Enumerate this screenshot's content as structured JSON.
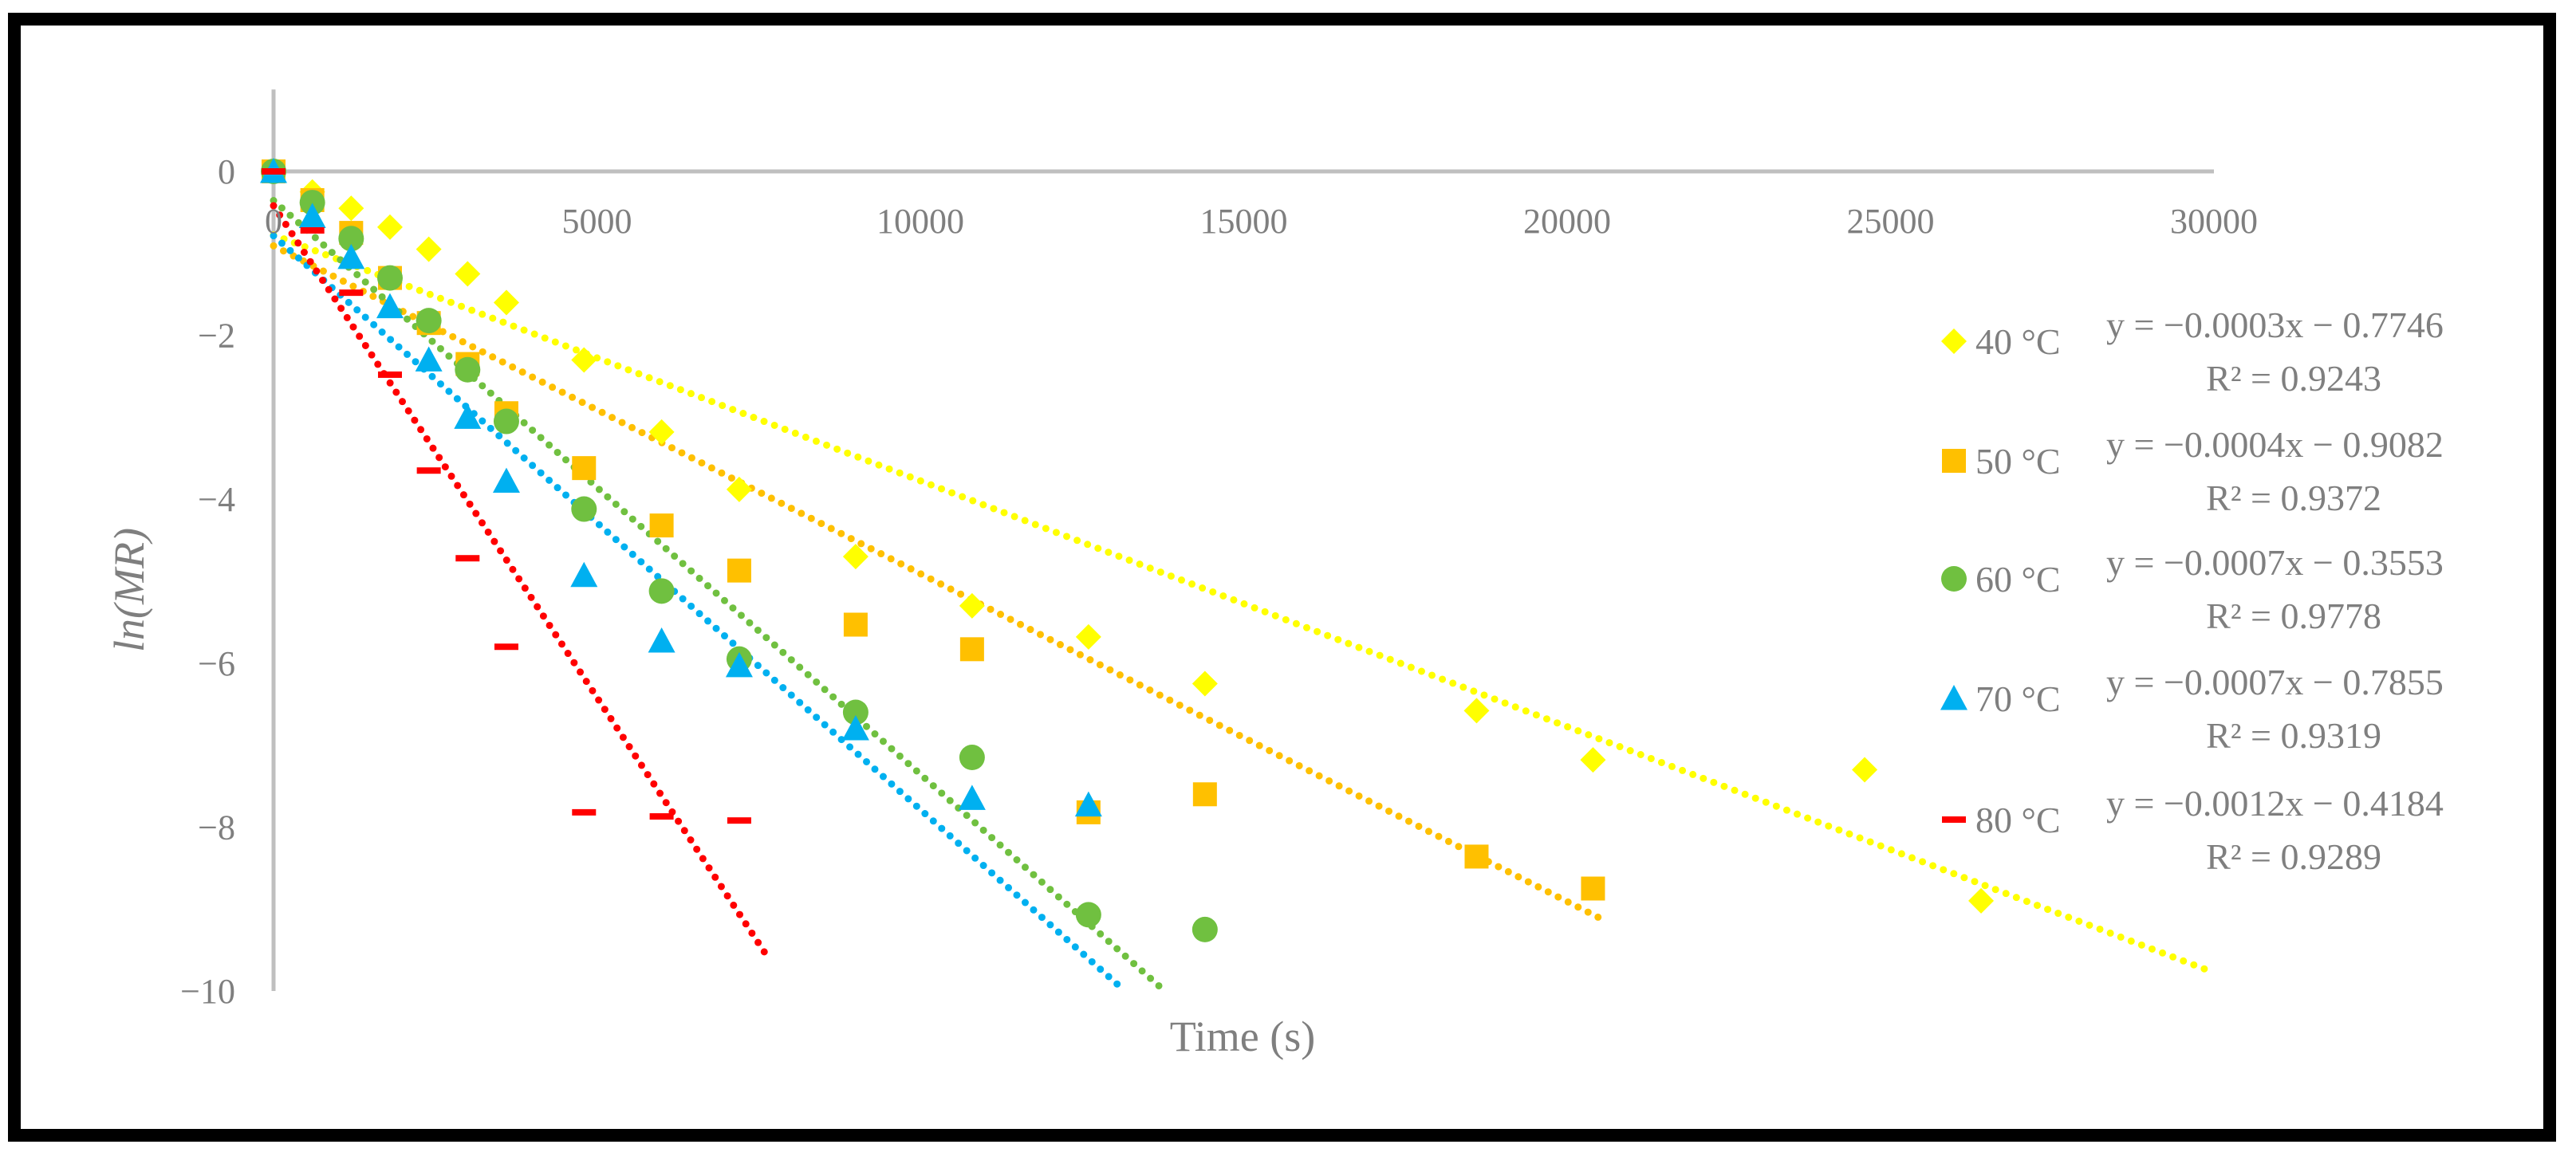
{
  "chart_data": {
    "type": "scatter",
    "title": "",
    "xlabel": "Time (s)",
    "ylabel": "ln(MR)",
    "xlim": [
      0,
      30000
    ],
    "ylim": [
      -10,
      1
    ],
    "x_ticks": [
      "0",
      "5000",
      "10000",
      "15000",
      "20000",
      "25000",
      "30000"
    ],
    "y_ticks": [
      "0",
      "−2",
      "−4",
      "−6",
      "−8",
      "−10"
    ],
    "grid": false,
    "legend_position": "right",
    "series": [
      {
        "name": "40 °C",
        "marker": "diamond",
        "color": "#FFFF00",
        "x": [
          0,
          600,
          1200,
          1800,
          2400,
          3000,
          3600,
          4800,
          6000,
          7200,
          9000,
          10800,
          12600,
          14400,
          18600,
          20400,
          24600,
          26400
        ],
        "y": [
          0,
          -0.25,
          -0.45,
          -0.68,
          -0.95,
          -1.25,
          -1.6,
          -2.3,
          -3.18,
          -3.88,
          -4.7,
          -5.3,
          -5.68,
          -6.25,
          -6.58,
          -7.18,
          -7.3,
          -8.9
        ],
        "trend": {
          "slope": -0.0003,
          "intercept": -0.7746,
          "x_end": 30000
        },
        "equation": "y = −0.0003x − 0.7746",
        "r2": "R² = 0.9243"
      },
      {
        "name": "50 °C",
        "marker": "square",
        "color": "#FFC000",
        "x": [
          0,
          600,
          1200,
          1800,
          2400,
          3000,
          3600,
          4800,
          6000,
          7200,
          9000,
          10800,
          12600,
          14400,
          18600,
          20400
        ],
        "y": [
          0,
          -0.35,
          -0.75,
          -1.3,
          -1.85,
          -2.35,
          -2.95,
          -3.62,
          -4.32,
          -4.87,
          -5.53,
          -5.83,
          -7.82,
          -7.6,
          -8.36,
          -8.75
        ],
        "trend": {
          "slope": -0.0004,
          "intercept": -0.9082,
          "x_end": 20500
        },
        "equation": "y = −0.0004x − 0.9082",
        "r2": "R² = 0.9372"
      },
      {
        "name": "60 °C",
        "marker": "circle",
        "color": "#70C040",
        "x": [
          0,
          600,
          1200,
          1800,
          2400,
          3000,
          3600,
          4800,
          6000,
          7200,
          9000,
          10800,
          12600,
          14400
        ],
        "y": [
          0,
          -0.38,
          -0.82,
          -1.3,
          -1.82,
          -2.42,
          -3.05,
          -4.12,
          -5.12,
          -5.95,
          -6.6,
          -7.15,
          -9.07,
          -9.25
        ],
        "trend": {
          "slope": -0.0007,
          "intercept": -0.3553,
          "x_end": 14400
        },
        "equation": "y = −0.0007x − 0.3553",
        "r2": "R² = 0.9778"
      },
      {
        "name": "70 °C",
        "marker": "triangle",
        "color": "#00B0F0",
        "x": [
          0,
          600,
          1200,
          1800,
          2400,
          3000,
          3600,
          4800,
          6000,
          7200,
          9000,
          10800,
          12600
        ],
        "y": [
          0,
          -0.55,
          -1.05,
          -1.65,
          -2.3,
          -3.0,
          -3.78,
          -4.93,
          -5.73,
          -6.03,
          -6.8,
          -7.65,
          -7.73
        ],
        "trend": {
          "slope": -0.0007,
          "intercept": -0.7855,
          "x_end": 14000
        },
        "equation": "y = −0.0007x − 0.7855",
        "r2": "R² = 0.9319"
      },
      {
        "name": "80 °C",
        "marker": "dash",
        "color": "#FF0000",
        "x": [
          0,
          600,
          1200,
          1800,
          2400,
          3000,
          3600,
          4800,
          6000,
          7200
        ],
        "y": [
          0,
          -0.72,
          -1.48,
          -2.48,
          -3.65,
          -4.72,
          -5.8,
          -7.82,
          -7.87,
          -7.92
        ],
        "trend": {
          "slope": -0.0012,
          "intercept": -0.4184,
          "x_end": 7600
        },
        "equation": "y = −0.0012x − 0.4184",
        "r2": "R² = 0.9289"
      }
    ]
  }
}
